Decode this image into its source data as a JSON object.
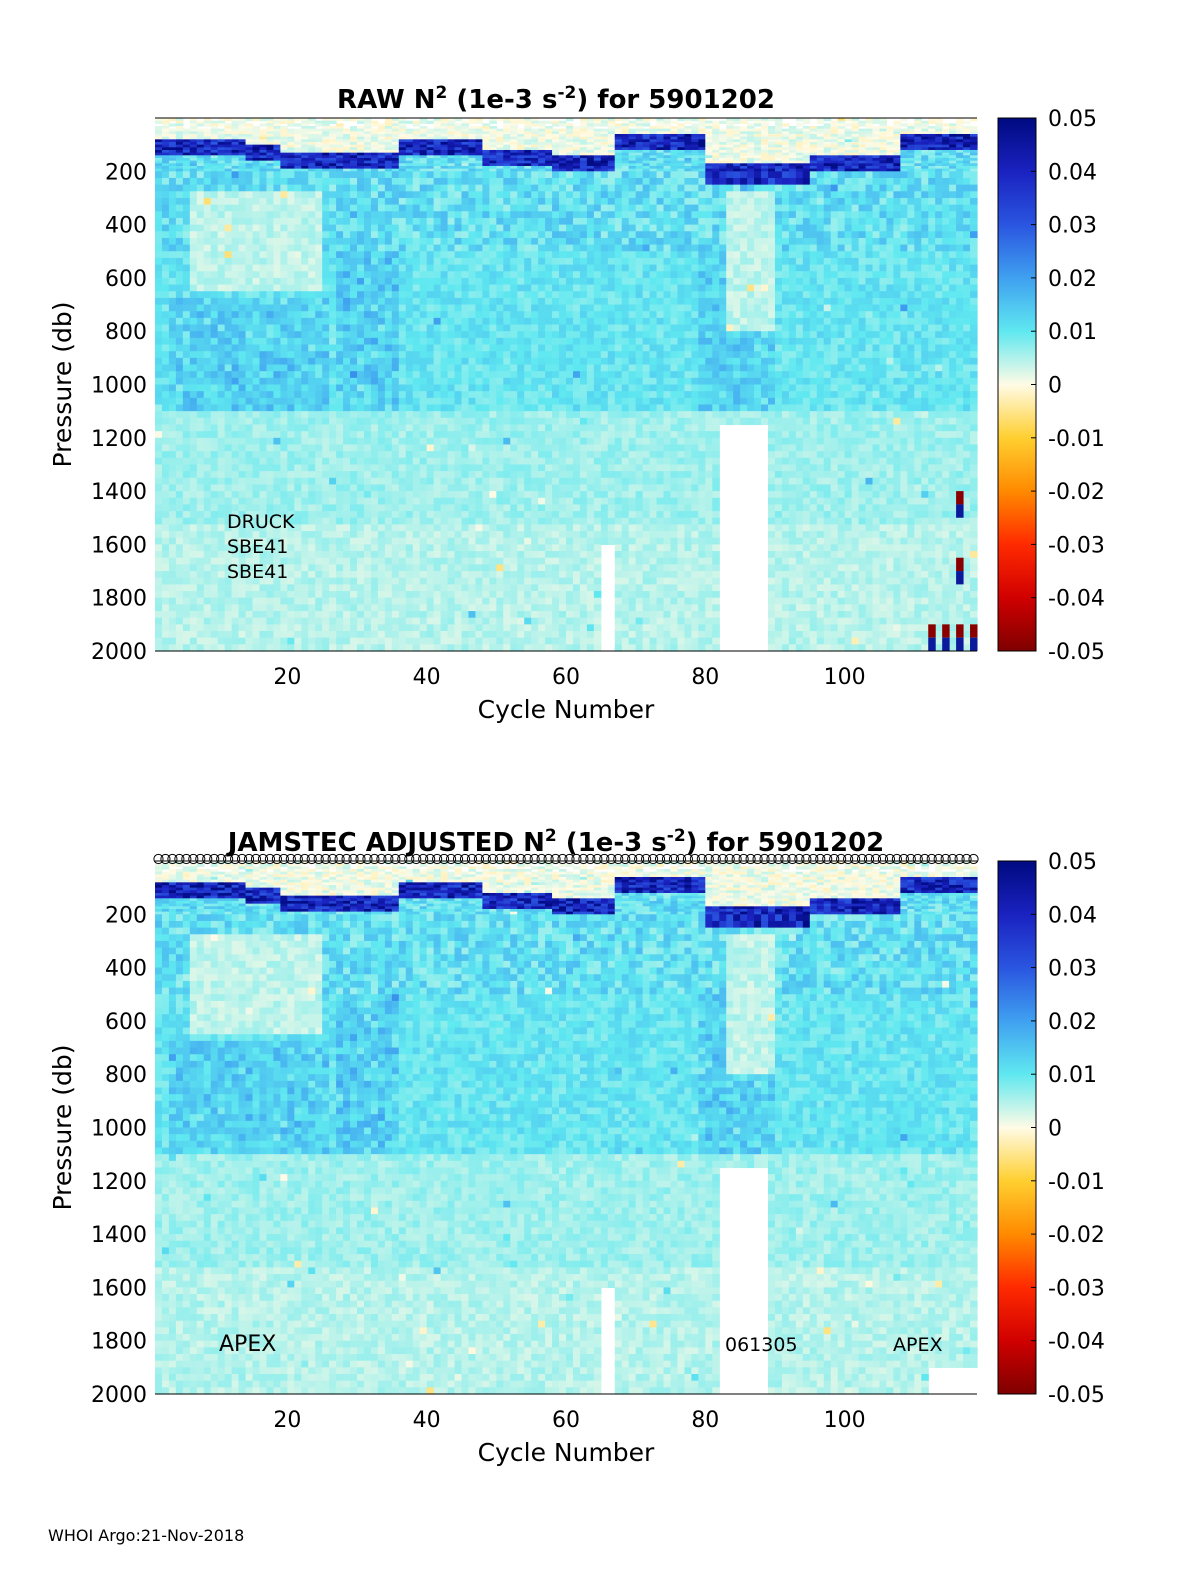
{
  "chart_data": [
    {
      "type": "heatmap",
      "title_parts": [
        "RAW N",
        "2",
        " (1e-3 s",
        "-2",
        ") for 5901202"
      ],
      "xlabel": "Cycle Number",
      "ylabel": "Pressure (db)",
      "xlim": [
        1,
        118
      ],
      "ylim": [
        0,
        2000
      ],
      "y_reversed": true,
      "x_ticks": [
        20,
        40,
        60,
        80,
        100
      ],
      "y_ticks": [
        200,
        400,
        600,
        800,
        1000,
        1200,
        1400,
        1600,
        1800,
        2000
      ],
      "colorbar": {
        "range": [
          -0.05,
          0.05
        ],
        "ticks": [
          "0.05",
          "0.04",
          "0.03",
          "0.02",
          "0.01",
          "0",
          "-0.01",
          "-0.02",
          "-0.03",
          "-0.04",
          "-0.05"
        ]
      },
      "annotations": [
        "DRUCK",
        "SBE41",
        "SBE41"
      ],
      "gaps": [
        {
          "x": [
            65,
            66
          ],
          "p_from": 1600
        },
        {
          "x": [
            82,
            88
          ],
          "p_from": 1150
        }
      ],
      "anomalies": [
        {
          "x": 116,
          "p": [
            1400,
            1500
          ]
        },
        {
          "x": 116,
          "p": [
            1650,
            1750
          ]
        },
        {
          "x": [
            112,
            118
          ],
          "p": [
            1900,
            2000
          ]
        }
      ]
    },
    {
      "type": "heatmap",
      "title_parts": [
        "JAMSTEC  ADJUSTED N",
        "2",
        " (1e-3 s",
        "-2",
        ") for 5901202"
      ],
      "xlabel": "Cycle Number",
      "ylabel": "Pressure (db)",
      "xlim": [
        1,
        118
      ],
      "ylim": [
        0,
        2000
      ],
      "y_reversed": true,
      "x_ticks": [
        20,
        40,
        60,
        80,
        100
      ],
      "y_ticks": [
        200,
        400,
        600,
        800,
        1000,
        1200,
        1400,
        1600,
        1800,
        2000
      ],
      "colorbar": {
        "range": [
          -0.05,
          0.05
        ],
        "ticks": [
          "0.05",
          "0.04",
          "0.03",
          "0.02",
          "0.01",
          "0",
          "-0.01",
          "-0.02",
          "-0.03",
          "-0.04",
          "-0.05"
        ]
      },
      "annotations": [
        "APEX",
        "061305",
        "APEX"
      ],
      "gaps": [
        {
          "x": [
            65,
            66
          ],
          "p_from": 1600
        },
        {
          "x": [
            82,
            88
          ],
          "p_from": 1150
        }
      ],
      "cycle_markers": true
    }
  ],
  "footer": "WHOI Argo:21-Nov-2018"
}
